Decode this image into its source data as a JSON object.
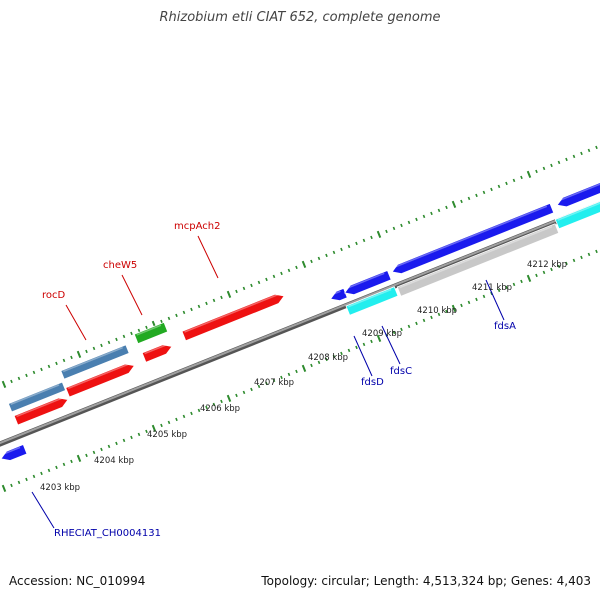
{
  "title": "Rhizobium etli CIAT 652, complete genome",
  "footer": {
    "accession": "Accession: NC_010994",
    "summary": "Topology: circular; Length: 4,513,324 bp; Genes: 4,403"
  },
  "colors": {
    "backbone": "#808080",
    "tick": "#2e8b2e",
    "gene_label_forward": "#cc0000",
    "gene_label_reverse": "#0000aa",
    "red_cds": "#ee1111",
    "blue_cds": "#1a1aee",
    "cyan_cds": "#22eeee",
    "steelblue_cds": "#4a7fb0",
    "green_cds": "#22aa22",
    "grey_cds": "#c8c8c8"
  },
  "ruler": {
    "unit": "kbp",
    "labels": [
      "4203 kbp",
      "4204 kbp",
      "4205 kbp",
      "4206 kbp",
      "4207 kbp",
      "4208 kbp",
      "4209 kbp",
      "4210 kbp",
      "4211 kbp",
      "4212 kbp"
    ]
  },
  "gene_labels": {
    "forward": [
      "rocD",
      "cheW5",
      "mcpAch2"
    ],
    "reverse": [
      "RHECIAT_CH0004131",
      "fdsD",
      "fdsC",
      "fdsA"
    ]
  }
}
